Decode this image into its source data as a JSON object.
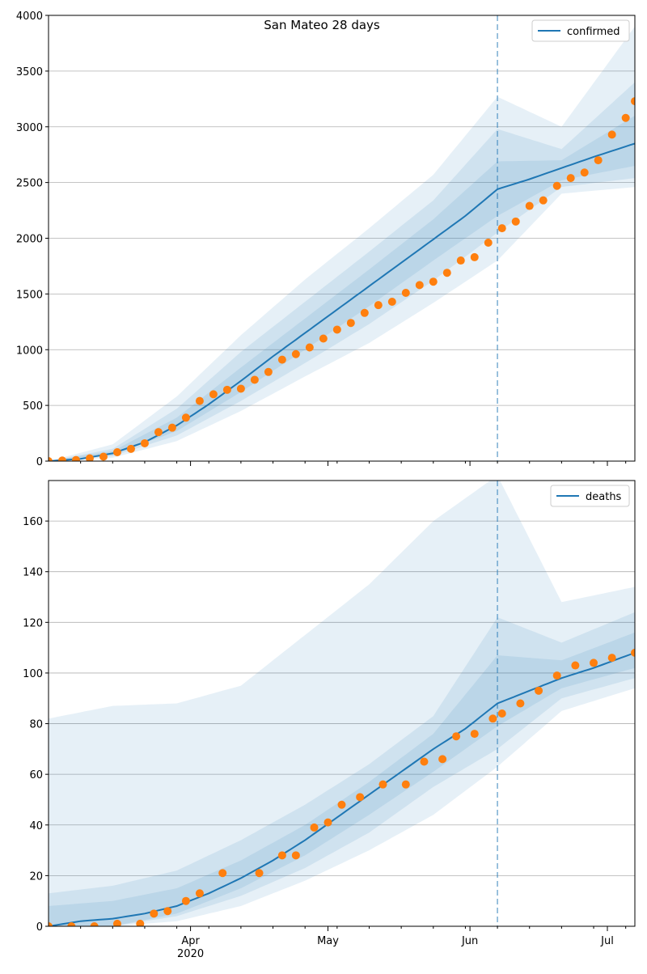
{
  "figure": {
    "title": "San Mateo 28 days"
  },
  "colors": {
    "line": "#1f77b4",
    "points": "#ff7f0e",
    "band": "#1f77b4",
    "grid": "#b0b0b0",
    "divider": "#1f77b4"
  },
  "x_axis": {
    "start_date": "2020-03-01",
    "end_date": "2020-07-07",
    "divider_date": "2020-06-07",
    "month_ticks": [
      {
        "date": "2020-04-01",
        "label": "Apr",
        "sublabel": "2020"
      },
      {
        "date": "2020-05-01",
        "label": "May",
        "sublabel": ""
      },
      {
        "date": "2020-06-01",
        "label": "Jun",
        "sublabel": ""
      },
      {
        "date": "2020-07-01",
        "label": "Jul",
        "sublabel": ""
      }
    ],
    "minor_tick_dates": [
      "2020-03-08",
      "2020-03-15",
      "2020-03-22",
      "2020-03-29",
      "2020-04-05",
      "2020-04-12",
      "2020-04-19",
      "2020-04-26",
      "2020-05-03",
      "2020-05-10",
      "2020-05-17",
      "2020-05-24",
      "2020-05-31",
      "2020-06-07",
      "2020-06-14",
      "2020-06-21",
      "2020-06-28",
      "2020-07-05"
    ]
  },
  "chart_data": [
    {
      "type": "line",
      "legend": "confirmed",
      "legend_position": "top-right",
      "ylim": [
        0,
        4000
      ],
      "yticks": [
        0,
        500,
        1000,
        1500,
        2000,
        2500,
        3000,
        3500,
        4000
      ],
      "grid": "horizontal",
      "line": {
        "x": [
          "2020-03-01",
          "2020-03-08",
          "2020-03-15",
          "2020-03-22",
          "2020-03-29",
          "2020-04-05",
          "2020-04-12",
          "2020-04-19",
          "2020-04-26",
          "2020-05-03",
          "2020-05-10",
          "2020-05-17",
          "2020-05-24",
          "2020-05-31",
          "2020-06-07",
          "2020-06-14",
          "2020-06-21",
          "2020-06-28",
          "2020-07-07"
        ],
        "y": [
          0,
          20,
          70,
          170,
          320,
          510,
          720,
          940,
          1150,
          1360,
          1570,
          1780,
          1990,
          2200,
          2440,
          2530,
          2630,
          2730,
          2850
        ]
      },
      "bands": [
        {
          "x": [
            "2020-03-01",
            "2020-03-15",
            "2020-03-29",
            "2020-04-12",
            "2020-04-26",
            "2020-05-10",
            "2020-05-24",
            "2020-06-07",
            "2020-06-21",
            "2020-07-07"
          ],
          "low": [
            0,
            30,
            180,
            450,
            760,
            1060,
            1420,
            1800,
            2400,
            2460
          ],
          "high": [
            0,
            150,
            580,
            1130,
            1630,
            2090,
            2570,
            3270,
            3000,
            3900
          ]
        },
        {
          "x": [
            "2020-03-01",
            "2020-03-15",
            "2020-03-29",
            "2020-04-12",
            "2020-04-26",
            "2020-05-10",
            "2020-05-24",
            "2020-06-07",
            "2020-06-21",
            "2020-07-07"
          ],
          "low": [
            0,
            45,
            230,
            540,
            880,
            1230,
            1620,
            2050,
            2460,
            2540
          ],
          "high": [
            0,
            110,
            470,
            980,
            1430,
            1880,
            2340,
            2980,
            2800,
            3400
          ]
        },
        {
          "x": [
            "2020-03-01",
            "2020-03-15",
            "2020-03-29",
            "2020-04-12",
            "2020-04-26",
            "2020-05-10",
            "2020-05-24",
            "2020-06-07",
            "2020-06-21",
            "2020-07-07"
          ],
          "low": [
            0,
            55,
            270,
            620,
            1000,
            1390,
            1800,
            2200,
            2520,
            2650
          ],
          "high": [
            0,
            90,
            390,
            840,
            1280,
            1720,
            2170,
            2690,
            2700,
            3100
          ]
        }
      ],
      "points": {
        "x": [
          "2020-03-01",
          "2020-03-04",
          "2020-03-07",
          "2020-03-10",
          "2020-03-13",
          "2020-03-16",
          "2020-03-19",
          "2020-03-22",
          "2020-03-25",
          "2020-03-28",
          "2020-03-31",
          "2020-04-03",
          "2020-04-06",
          "2020-04-09",
          "2020-04-12",
          "2020-04-15",
          "2020-04-18",
          "2020-04-21",
          "2020-04-24",
          "2020-04-27",
          "2020-04-30",
          "2020-05-03",
          "2020-05-06",
          "2020-05-09",
          "2020-05-12",
          "2020-05-15",
          "2020-05-18",
          "2020-05-21",
          "2020-05-24",
          "2020-05-27",
          "2020-05-30",
          "2020-06-02",
          "2020-06-05",
          "2020-06-08",
          "2020-06-11",
          "2020-06-14",
          "2020-06-17",
          "2020-06-20",
          "2020-06-23",
          "2020-06-26",
          "2020-06-29",
          "2020-07-02",
          "2020-07-05",
          "2020-07-07"
        ],
        "y": [
          0,
          5,
          10,
          25,
          40,
          80,
          110,
          160,
          260,
          300,
          390,
          540,
          600,
          640,
          650,
          730,
          800,
          910,
          960,
          1020,
          1100,
          1180,
          1240,
          1330,
          1400,
          1430,
          1510,
          1580,
          1610,
          1690,
          1800,
          1830,
          1960,
          2090,
          2150,
          2290,
          2340,
          2470,
          2540,
          2590,
          2700,
          2930,
          3080,
          3230
        ]
      }
    },
    {
      "type": "line",
      "legend": "deaths",
      "legend_position": "top-right",
      "ylim": [
        0,
        176
      ],
      "yticks": [
        0,
        20,
        40,
        60,
        80,
        100,
        120,
        140,
        160
      ],
      "grid": "horizontal",
      "line": {
        "x": [
          "2020-03-01",
          "2020-03-08",
          "2020-03-15",
          "2020-03-22",
          "2020-03-29",
          "2020-04-05",
          "2020-04-12",
          "2020-04-19",
          "2020-04-26",
          "2020-05-03",
          "2020-05-10",
          "2020-05-17",
          "2020-05-24",
          "2020-05-31",
          "2020-06-07",
          "2020-06-14",
          "2020-06-21",
          "2020-06-28",
          "2020-07-07"
        ],
        "y": [
          0,
          2,
          3,
          5,
          8,
          13,
          19,
          26,
          34,
          43,
          52,
          61,
          70,
          78,
          88,
          93,
          98,
          102,
          108
        ]
      },
      "bands": [
        {
          "x": [
            "2020-03-01",
            "2020-03-15",
            "2020-03-29",
            "2020-04-12",
            "2020-04-26",
            "2020-05-10",
            "2020-05-24",
            "2020-06-07",
            "2020-06-21",
            "2020-07-07"
          ],
          "low": [
            0,
            0,
            2,
            8,
            18,
            30,
            44,
            63,
            85,
            94
          ],
          "high": [
            82,
            87,
            88,
            95,
            115,
            135,
            160,
            178,
            128,
            134
          ]
        },
        {
          "x": [
            "2020-03-01",
            "2020-03-15",
            "2020-03-29",
            "2020-04-12",
            "2020-04-26",
            "2020-05-10",
            "2020-05-24",
            "2020-06-07",
            "2020-06-21",
            "2020-07-07"
          ],
          "low": [
            0,
            0,
            4,
            12,
            23,
            37,
            55,
            70,
            90,
            98
          ],
          "high": [
            13,
            16,
            22,
            34,
            48,
            64,
            83,
            122,
            112,
            124
          ]
        },
        {
          "x": [
            "2020-03-01",
            "2020-03-15",
            "2020-03-29",
            "2020-04-12",
            "2020-04-26",
            "2020-05-10",
            "2020-05-24",
            "2020-06-07",
            "2020-06-21",
            "2020-07-07"
          ],
          "low": [
            0,
            0,
            5,
            15,
            28,
            44,
            61,
            79,
            94,
            102
          ],
          "high": [
            8,
            10,
            15,
            26,
            40,
            57,
            76,
            107,
            105,
            116
          ]
        }
      ],
      "points": {
        "x": [
          "2020-03-01",
          "2020-03-06",
          "2020-03-11",
          "2020-03-16",
          "2020-03-21",
          "2020-03-24",
          "2020-03-27",
          "2020-03-31",
          "2020-04-03",
          "2020-04-08",
          "2020-04-16",
          "2020-04-21",
          "2020-04-24",
          "2020-04-28",
          "2020-05-01",
          "2020-05-04",
          "2020-05-08",
          "2020-05-13",
          "2020-05-18",
          "2020-05-22",
          "2020-05-26",
          "2020-05-29",
          "2020-06-02",
          "2020-06-06",
          "2020-06-08",
          "2020-06-12",
          "2020-06-16",
          "2020-06-20",
          "2020-06-24",
          "2020-06-28",
          "2020-07-02",
          "2020-07-07"
        ],
        "y": [
          0,
          0,
          0,
          1,
          1,
          5,
          6,
          10,
          13,
          21,
          21,
          28,
          28,
          39,
          41,
          48,
          51,
          56,
          56,
          65,
          66,
          75,
          76,
          82,
          84,
          88,
          93,
          99,
          103,
          104,
          106,
          108
        ]
      }
    }
  ]
}
